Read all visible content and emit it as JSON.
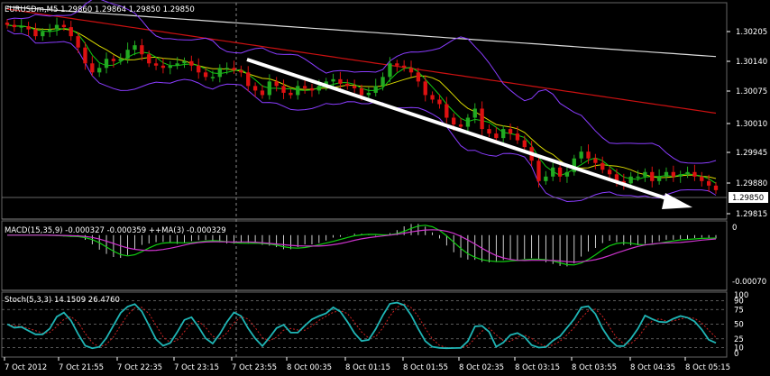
{
  "main": {
    "header": "EURUSDm,M5  1.29860 1.29864 1.29850 1.29850",
    "price_ticks": [
      "1.30205",
      "1.30140",
      "1.30075",
      "1.30010",
      "1.29945",
      "1.29880",
      "1.29815"
    ],
    "current_price": "1.29850",
    "last_close_text": "1.29850"
  },
  "macd": {
    "header": "MACD(15,35,9) -0.000327 -0.000359  ++MA(3) -0.000329",
    "ticks": [
      "0",
      "-0.00070"
    ]
  },
  "stoch": {
    "header": "Stoch(5,3,3) 14.1509 26.4760",
    "ticks": [
      "100",
      "90",
      "75",
      "50",
      "25",
      "10",
      "0"
    ]
  },
  "time_ticks": [
    "7 Oct 2012",
    "7 Oct 21:55",
    "7 Oct 22:35",
    "7 Oct 23:15",
    "7 Oct 23:55",
    "8 Oct 00:35",
    "8 Oct 01:15",
    "8 Oct 01:55",
    "8 Oct 02:35",
    "8 Oct 03:15",
    "8 Oct 03:55",
    "8 Oct 04:35",
    "8 Oct 05:15"
  ],
  "colors": {
    "background": "#000000",
    "bull": "#22aa22",
    "bear": "#dd1111",
    "bollinger": "#8a3cff",
    "ma_red": "#cc1111",
    "ma_white": "#dddddd",
    "ma_yellow": "#d8d800",
    "ma_green": "#11cc11",
    "macd_line": "#11cc11",
    "macd_signal": "#cc33cc",
    "stoch_main": "#1fb5b5",
    "stoch_signal": "#cc2222",
    "grid_dashed": "#666666",
    "arrow": "#ffffff"
  },
  "chart_data": [
    {
      "type": "candlestick",
      "title": "EURUSDm,M5",
      "ohlc_header": [
        1.2986,
        1.29864,
        1.2985,
        1.2985
      ],
      "ylim": [
        1.2979,
        1.3026
      ],
      "closes": [
        1.30215,
        1.3021,
        1.30212,
        1.30205,
        1.3019,
        1.302,
        1.30205,
        1.30215,
        1.3021,
        1.3019,
        1.30165,
        1.3013,
        1.3011,
        1.3012,
        1.3014,
        1.30135,
        1.3014,
        1.3016,
        1.3017,
        1.3015,
        1.3013,
        1.30125,
        1.3012,
        1.30125,
        1.3013,
        1.30135,
        1.30125,
        1.3011,
        1.301,
        1.301,
        1.3012,
        1.3012,
        1.30115,
        1.3011,
        1.3008,
        1.3007,
        1.3006,
        1.3009,
        1.3008,
        1.30065,
        1.3006,
        1.3008,
        1.30075,
        1.3007,
        1.3008,
        1.3009,
        1.30095,
        1.30085,
        1.3008,
        1.30075,
        1.3006,
        1.30065,
        1.3008,
        1.301,
        1.3013,
        1.30125,
        1.3012,
        1.3011,
        1.3009,
        1.3006,
        1.3005,
        1.3004,
        1.3001,
        1.29995,
        1.2999,
        1.3001,
        1.3003,
        1.29985,
        1.29975,
        1.29965,
        1.29985,
        1.29975,
        1.2996,
        1.29945,
        1.29915,
        1.2987,
        1.2988,
        1.299,
        1.2988,
        1.2989,
        1.2992,
        1.29935,
        1.2992,
        1.2991,
        1.29895,
        1.29885,
        1.2987,
        1.29865,
        1.2988,
        1.2988,
        1.2989,
        1.2987,
        1.2988,
        1.2989,
        1.2988,
        1.29885,
        1.2989,
        1.2988,
        1.2987,
        1.2986,
        1.2985
      ],
      "indicators": [
        "Bollinger Bands",
        "Moving Averages"
      ]
    },
    {
      "type": "histogram",
      "title": "MACD(15,35,9)",
      "values": [
        -0.000327,
        -0.000359
      ],
      "ma3": -0.000329,
      "ylim": [
        -0.00075,
        5e-05
      ]
    },
    {
      "type": "line",
      "title": "Stoch(5,3,3)",
      "values": [
        14.1509,
        26.476
      ],
      "levels": [
        90,
        75,
        50,
        25,
        10
      ],
      "ylim": [
        0,
        100
      ]
    }
  ]
}
